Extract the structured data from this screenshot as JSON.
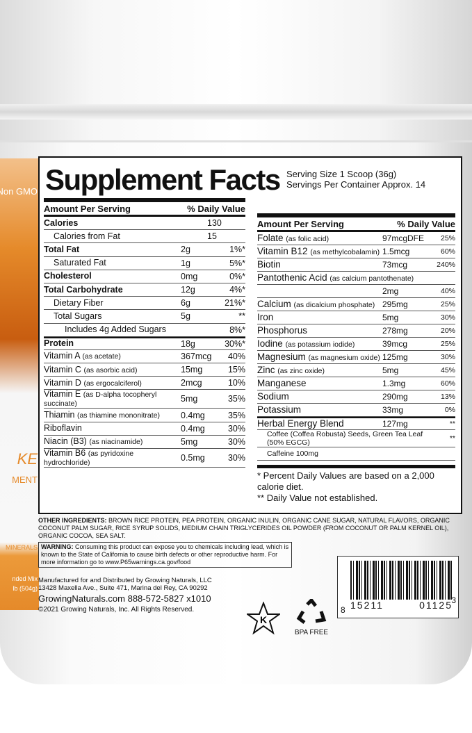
{
  "side_text": {
    "non_gmo": "Non GMO",
    "ke": "KE",
    "ment": "MENT",
    "minerals": "MINERALS",
    "mix": "nded Mix",
    "weight": "lb (504g)"
  },
  "label": {
    "title": "Supplement Facts",
    "serving_size": "Serving Size 1 Scoop (36g)",
    "servings_per_container": "Servings Per Container Approx. 14",
    "left": {
      "amount_header": "Amount Per Serving",
      "dv_header": "% Daily Value",
      "rows": [
        {
          "name": "Calories",
          "sub": "",
          "amount": "130",
          "dv": "",
          "style": "b"
        },
        {
          "name": "Calories from Fat",
          "sub": "",
          "amount": "15",
          "dv": "",
          "style": "i1"
        },
        {
          "name": "Total Fat",
          "sub": "",
          "amount": "2g",
          "dv": "1%*",
          "style": "b"
        },
        {
          "name": "Saturated Fat",
          "sub": "",
          "amount": "1g",
          "dv": "5%*",
          "style": "i1"
        },
        {
          "name": "Cholesterol",
          "sub": "",
          "amount": "0mg",
          "dv": "0%*",
          "style": "b"
        },
        {
          "name": "Total Carbohydrate",
          "sub": "",
          "amount": "12g",
          "dv": "4%*",
          "style": "b"
        },
        {
          "name": "Dietary Fiber",
          "sub": "",
          "amount": "6g",
          "dv": "21%*",
          "style": "i1"
        },
        {
          "name": "Total Sugars",
          "sub": "",
          "amount": "5g",
          "dv": "**",
          "style": "i1"
        },
        {
          "name": "Includes 4g Added Sugars",
          "sub": "",
          "amount": "",
          "dv": "8%*",
          "style": "i2"
        },
        {
          "name": "Protein",
          "sub": "",
          "amount": "18g",
          "dv": "30%*",
          "style": "b thick"
        },
        {
          "name": "Vitamin A",
          "sub": "(as acetate)",
          "amount": "367mcg",
          "dv": "40%",
          "style": ""
        },
        {
          "name": "Vitamin C",
          "sub": "(as asorbic acid)",
          "amount": "15mg",
          "dv": "15%",
          "style": ""
        },
        {
          "name": "Vitamin D",
          "sub": "(as ergocalciferol)",
          "amount": "2mcg",
          "dv": "10%",
          "style": ""
        },
        {
          "name": "Vitamin E",
          "sub": "(as D-alpha tocopheryl succinate)",
          "amount": "5mg",
          "dv": "35%",
          "style": ""
        },
        {
          "name": "Thiamin",
          "sub": "(as thiamine mononitrate)",
          "amount": "0.4mg",
          "dv": "35%",
          "style": ""
        },
        {
          "name": "Riboflavin",
          "sub": "",
          "amount": "0.4mg",
          "dv": "30%",
          "style": ""
        },
        {
          "name": "Niacin (B3)",
          "sub": "(as niacinamide)",
          "amount": "5mg",
          "dv": "30%",
          "style": ""
        },
        {
          "name": "Vitamin B6",
          "sub": "(as pyridoxine hydrochloride)",
          "amount": "0.5mg",
          "dv": "30%",
          "style": ""
        }
      ]
    },
    "right": {
      "amount_header": "Amount Per Serving",
      "dv_header": "% Daily Value",
      "rows": [
        {
          "name": "Folate",
          "sub": "(as folic acid)",
          "amount": "97mcgDFE",
          "dv": "25%",
          "style": ""
        },
        {
          "name": "Vitamin B12",
          "sub": "(as methylcobalamin)",
          "amount": "1.5mcg",
          "dv": "60%",
          "style": ""
        },
        {
          "name": "Biotin",
          "sub": "",
          "amount": "73mcg",
          "dv": "240%",
          "style": ""
        },
        {
          "name": "Pantothenic Acid",
          "sub": "(as calcium pantothenate)",
          "amount": "",
          "dv": "",
          "style": ""
        },
        {
          "name": "",
          "sub": "",
          "amount": "2mg",
          "dv": "40%",
          "style": ""
        },
        {
          "name": "Calcium",
          "sub": "(as dicalcium phosphate)",
          "amount": "295mg",
          "dv": "25%",
          "style": ""
        },
        {
          "name": "Iron",
          "sub": "",
          "amount": "5mg",
          "dv": "30%",
          "style": ""
        },
        {
          "name": "Phosphorus",
          "sub": "",
          "amount": "278mg",
          "dv": "20%",
          "style": ""
        },
        {
          "name": "Iodine",
          "sub": "(as potassium iodide)",
          "amount": "39mcg",
          "dv": "25%",
          "style": ""
        },
        {
          "name": "Magnesium",
          "sub": "(as magnesium oxide)",
          "amount": "125mg",
          "dv": "30%",
          "style": ""
        },
        {
          "name": "Zinc",
          "sub": "(as zinc oxide)",
          "amount": "5mg",
          "dv": "45%",
          "style": ""
        },
        {
          "name": "Manganese",
          "sub": "",
          "amount": "1.3mg",
          "dv": "60%",
          "style": ""
        },
        {
          "name": "Sodium",
          "sub": "",
          "amount": "290mg",
          "dv": "13%",
          "style": ""
        },
        {
          "name": "Potassium",
          "sub": "",
          "amount": "33mg",
          "dv": "0%",
          "style": ""
        },
        {
          "name": "Herbal Energy Blend",
          "sub": "",
          "amount": "127mg",
          "dv": "**",
          "style": "thick"
        },
        {
          "name": "Coffee (Coffea Robusta) Seeds, Green Tea Leaf (50% EGCG)",
          "sub": "",
          "amount": "",
          "dv": "**",
          "style": "i3"
        },
        {
          "name": "Caffeine 100mg",
          "sub": "",
          "amount": "",
          "dv": "",
          "style": "i3"
        }
      ],
      "footnote1": "* Percent Daily Values are based on a 2,000 calorie diet.",
      "footnote2": "** Daily Value not established."
    }
  },
  "other_ingredients": {
    "label": "OTHER INGREDIENTS:",
    "text": "BROWN RICE PROTEIN, PEA PROTEIN, ORGANIC INULIN, ORGANIC CANE SUGAR, NATURAL FLAVORS, ORGANIC COCONUT PALM SUGAR, RICE SYRUP SOLIDS, MEDIUM CHAIN TRIGLYCERIDES OIL POWDER (FROM COCONUT OR PALM KERNEL OIL), ORGANIC COCOA, SEA SALT."
  },
  "warning": {
    "label": "WARNING:",
    "text": "Consuming this product can expose you to chemicals including lead, which is known to the State of California to cause birth defects or other reproductive harm. For more information go to www.P65warnings.ca.gov/food"
  },
  "manufacturer": {
    "line1": "Manufactured for and Distributed by Growing Naturals, LLC",
    "line2": "13428 Maxella Ave., Suite 471, Marina del Rey, CA 90292",
    "website_phone": "GrowingNaturals.com 888-572-5827 x1010",
    "copyright": "©2021 Growing Naturals, Inc. All Rights Reserved."
  },
  "badges": {
    "kosher": "K",
    "bpa": "BPA FREE"
  },
  "barcode": {
    "left": "8",
    "groups": [
      "15211",
      "01125"
    ],
    "right": "3"
  }
}
